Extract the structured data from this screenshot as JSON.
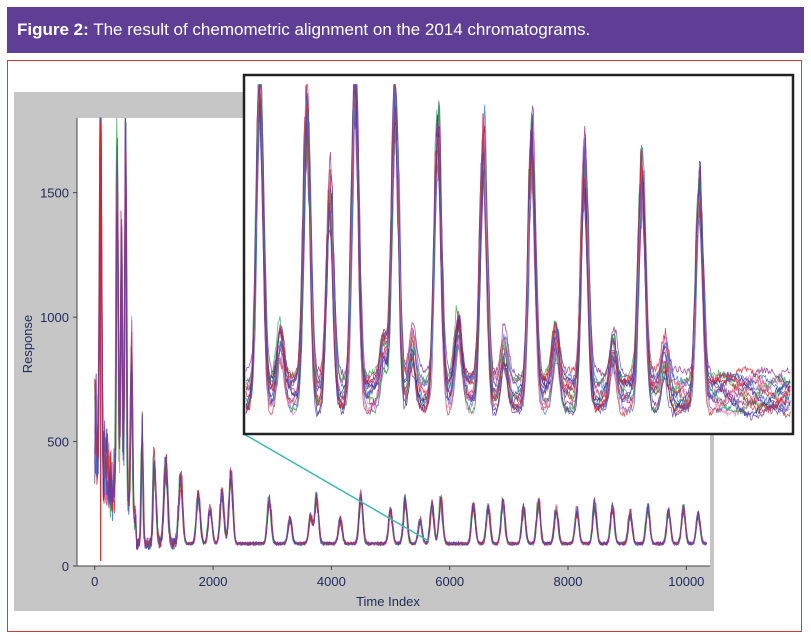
{
  "caption": {
    "label": "Figure 2:",
    "text": " The result of chemometric alignment on the 2014 chromatograms."
  },
  "colors": {
    "caption_bg": "#5e3f95",
    "frame_border": "#d43a3a",
    "panel_bg": "#c6c6c6",
    "connector": "#3fb8b0"
  },
  "chart_data": {
    "type": "line",
    "xlabel": "Time Index",
    "ylabel": "Response",
    "xlim": [
      -300,
      10400
    ],
    "ylim": [
      0,
      1800
    ],
    "xticks": [
      0,
      2000,
      4000,
      6000,
      8000,
      10000
    ],
    "yticks": [
      0,
      500,
      1000,
      1500
    ],
    "series_colors": [
      "#e0202a",
      "#1a2a8c",
      "#2ea84a",
      "#8a2a8a",
      "#e878b0",
      "#3a6ad0",
      "#c83030",
      "#6a3aa0"
    ],
    "main_peaks": [
      {
        "x": 100,
        "y": 1780
      },
      {
        "x": 380,
        "y": 1550
      },
      {
        "x": 450,
        "y": 1120
      },
      {
        "x": 520,
        "y": 1580
      },
      {
        "x": 620,
        "y": 800
      },
      {
        "x": 800,
        "y": 500
      },
      {
        "x": 1000,
        "y": 380
      },
      {
        "x": 1200,
        "y": 350
      },
      {
        "x": 1450,
        "y": 290
      },
      {
        "x": 1750,
        "y": 220
      },
      {
        "x": 1950,
        "y": 160
      },
      {
        "x": 2150,
        "y": 230
      },
      {
        "x": 2300,
        "y": 300
      },
      {
        "x": 2950,
        "y": 195
      },
      {
        "x": 3300,
        "y": 110
      },
      {
        "x": 3650,
        "y": 120
      },
      {
        "x": 3750,
        "y": 200
      },
      {
        "x": 4150,
        "y": 105
      },
      {
        "x": 4500,
        "y": 210
      },
      {
        "x": 5000,
        "y": 150
      },
      {
        "x": 5250,
        "y": 190
      },
      {
        "x": 5500,
        "y": 105
      },
      {
        "x": 5700,
        "y": 170
      },
      {
        "x": 5850,
        "y": 190
      },
      {
        "x": 6400,
        "y": 175
      },
      {
        "x": 6650,
        "y": 160
      },
      {
        "x": 6900,
        "y": 180
      },
      {
        "x": 7250,
        "y": 155
      },
      {
        "x": 7500,
        "y": 185
      },
      {
        "x": 7800,
        "y": 160
      },
      {
        "x": 8150,
        "y": 150
      },
      {
        "x": 8450,
        "y": 175
      },
      {
        "x": 8750,
        "y": 165
      },
      {
        "x": 9050,
        "y": 140
      },
      {
        "x": 9350,
        "y": 160
      },
      {
        "x": 9700,
        "y": 145
      },
      {
        "x": 9950,
        "y": 155
      },
      {
        "x": 10200,
        "y": 130
      }
    ],
    "baseline": 90,
    "inset": {
      "region_x": [
        5650,
        10400
      ],
      "peaks": [
        {
          "x": 5770,
          "y": 1790
        },
        {
          "x": 6180,
          "y": 1600
        },
        {
          "x": 6380,
          "y": 1150
        },
        {
          "x": 6600,
          "y": 1790
        },
        {
          "x": 6950,
          "y": 1680
        },
        {
          "x": 7320,
          "y": 1520
        },
        {
          "x": 7720,
          "y": 1430
        },
        {
          "x": 8140,
          "y": 1400
        },
        {
          "x": 8600,
          "y": 1330
        },
        {
          "x": 9100,
          "y": 1220
        },
        {
          "x": 9600,
          "y": 1180
        }
      ],
      "minor_peaks": [
        {
          "x": 5950,
          "y": 300
        },
        {
          "x": 6850,
          "y": 230
        },
        {
          "x": 7100,
          "y": 270
        },
        {
          "x": 7500,
          "y": 360
        },
        {
          "x": 7900,
          "y": 250
        },
        {
          "x": 8350,
          "y": 300
        },
        {
          "x": 8850,
          "y": 260
        },
        {
          "x": 9300,
          "y": 220
        }
      ]
    }
  }
}
